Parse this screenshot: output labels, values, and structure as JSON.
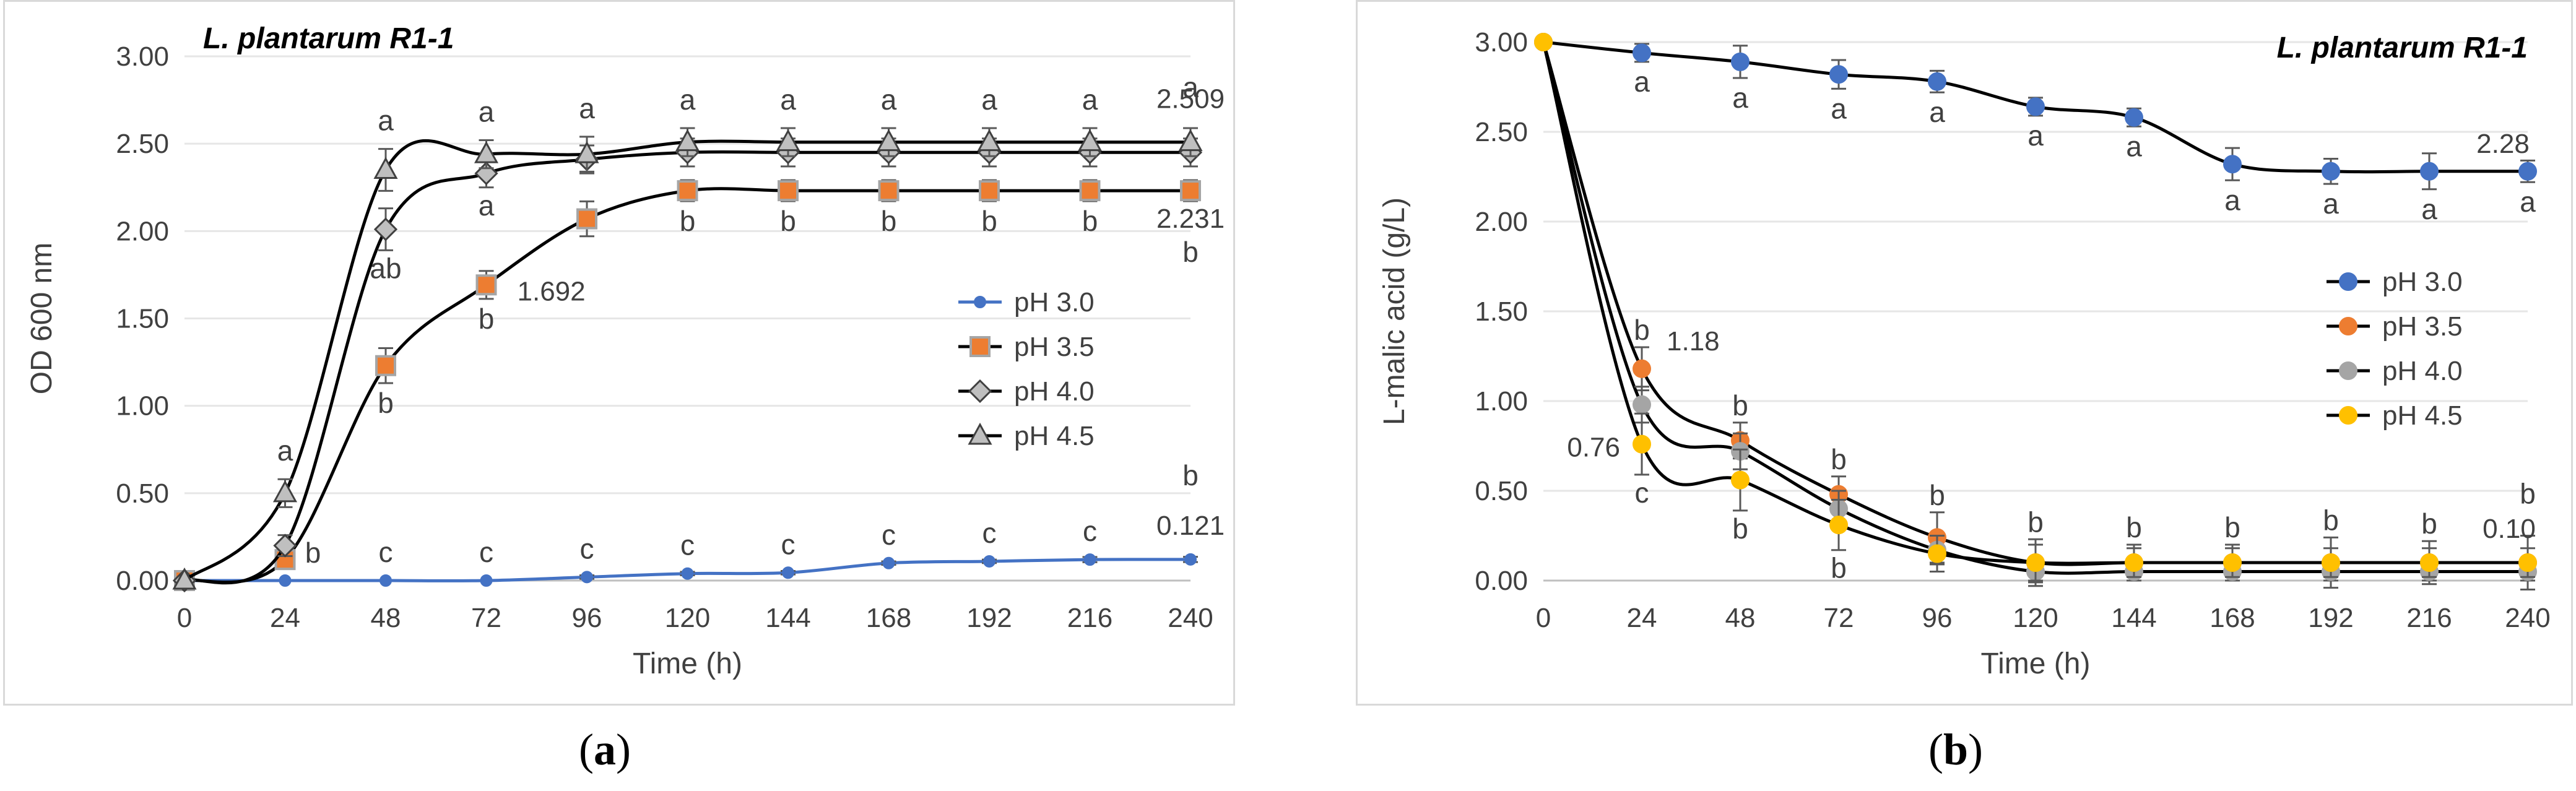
{
  "captions": {
    "a": "a",
    "b": "b"
  },
  "chart_data": [
    {
      "panel": "a",
      "type": "line",
      "title": "L. plantarum R1-1",
      "xlabel": "Time (h)",
      "ylabel": "OD 600 nm",
      "x": [
        0,
        24,
        48,
        72,
        96,
        120,
        144,
        168,
        192,
        216,
        240
      ],
      "xticks": [
        "0",
        "24",
        "48",
        "72",
        "96",
        "120",
        "144",
        "168",
        "192",
        "216",
        "240"
      ],
      "xlim": [
        0,
        240
      ],
      "ylim": [
        0,
        3
      ],
      "yticks": [
        "0.00",
        "0.50",
        "1.00",
        "1.50",
        "2.00",
        "2.50",
        "3.00"
      ],
      "legend_position": "right-middle",
      "series": [
        {
          "name": "pH 3.0",
          "marker": "circle-small",
          "color": "#4472c4",
          "line": "#4472c4",
          "values": [
            0,
            0,
            0,
            0,
            0.02,
            0.04,
            0.045,
            0.1,
            0.11,
            0.12,
            0.121
          ],
          "errors": [
            0,
            0,
            0,
            0,
            0.01,
            0.01,
            0.01,
            0.01,
            0.01,
            0.015,
            0.015
          ],
          "letters": [
            "",
            "",
            "c",
            "c",
            "c",
            "c",
            "c",
            "c",
            "c",
            "c",
            "b"
          ]
        },
        {
          "name": "pH 3.5",
          "marker": "square",
          "color": "#ed7d31",
          "line": "#000000",
          "values": [
            0,
            0.12,
            1.23,
            1.692,
            2.07,
            2.231,
            2.231,
            2.231,
            2.231,
            2.231,
            2.231
          ],
          "errors": [
            0,
            0.05,
            0.1,
            0.08,
            0.1,
            0.06,
            0.06,
            0.06,
            0.06,
            0.06,
            0.06
          ],
          "letters": [
            "",
            "b",
            "b",
            "b",
            "",
            "b",
            "b",
            "b",
            "b",
            "b",
            "b"
          ]
        },
        {
          "name": "pH 4.0",
          "marker": "diamond",
          "color": "#bfbfbf",
          "line": "#000000",
          "values": [
            0,
            0.2,
            2.01,
            2.33,
            2.41,
            2.45,
            2.45,
            2.45,
            2.45,
            2.45,
            2.45
          ],
          "errors": [
            0,
            0.06,
            0.12,
            0.08,
            0.08,
            0.08,
            0.08,
            0.08,
            0.08,
            0.08,
            0.08
          ],
          "letters": [
            "",
            "",
            "ab",
            "a",
            "",
            "",
            "",
            "",
            "",
            "",
            ""
          ]
        },
        {
          "name": "pH 4.5",
          "marker": "triangle",
          "color": "#bfbfbf",
          "line": "#000000",
          "values": [
            0,
            0.5,
            2.35,
            2.44,
            2.44,
            2.509,
            2.509,
            2.509,
            2.509,
            2.509,
            2.509
          ],
          "errors": [
            0,
            0.08,
            0.12,
            0.08,
            0.1,
            0.08,
            0.08,
            0.08,
            0.08,
            0.08,
            0.08
          ],
          "letters": [
            "",
            "a",
            "a",
            "a",
            "a",
            "a",
            "a",
            "a",
            "a",
            "a",
            "a"
          ]
        }
      ],
      "annotations": [
        "2.509",
        "2.231",
        "1.692",
        "0.121"
      ]
    },
    {
      "panel": "b",
      "type": "line",
      "title": "L. plantarum R1-1",
      "xlabel": "Time (h)",
      "ylabel": "L-malic acid (g/L)",
      "x": [
        0,
        24,
        48,
        72,
        96,
        120,
        144,
        168,
        192,
        216,
        240
      ],
      "xticks": [
        "0",
        "24",
        "48",
        "72",
        "96",
        "120",
        "144",
        "168",
        "192",
        "216",
        "240"
      ],
      "xlim": [
        0,
        240
      ],
      "ylim": [
        0,
        3
      ],
      "yticks": [
        "0.00",
        "0.50",
        "1.00",
        "1.50",
        "2.00",
        "2.50",
        "3.00"
      ],
      "legend_position": "right-middle",
      "series": [
        {
          "name": "pH 3.0",
          "marker": "circle",
          "color": "#4472c4",
          "line": "#000000",
          "values": [
            3.0,
            2.94,
            2.89,
            2.82,
            2.78,
            2.64,
            2.58,
            2.32,
            2.28,
            2.28,
            2.28
          ],
          "errors": [
            0,
            0.05,
            0.09,
            0.08,
            0.06,
            0.05,
            0.05,
            0.09,
            0.07,
            0.1,
            0.06
          ],
          "letters": [
            "",
            "a",
            "a",
            "a",
            "a",
            "a",
            "a",
            "a",
            "a",
            "a",
            "a"
          ]
        },
        {
          "name": "pH 3.5",
          "marker": "circle",
          "color": "#ed7d31",
          "line": "#000000",
          "values": [
            3.0,
            1.18,
            0.78,
            0.48,
            0.24,
            0.1,
            0.1,
            0.1,
            0.1,
            0.1,
            0.1
          ],
          "errors": [
            0,
            0.12,
            0.1,
            0.1,
            0.14,
            0.13,
            0.1,
            0.1,
            0.14,
            0.12,
            0.15
          ],
          "letters": [
            "",
            "b",
            "b",
            "b",
            "b",
            "b",
            "b",
            "b",
            "b",
            "b",
            "b"
          ]
        },
        {
          "name": "pH 4.0",
          "marker": "circle",
          "color": "#a5a5a5",
          "line": "#000000",
          "values": [
            3.0,
            0.98,
            0.72,
            0.4,
            0.17,
            0.05,
            0.05,
            0.05,
            0.05,
            0.05,
            0.05
          ],
          "errors": [
            0,
            0.1,
            0.1,
            0.1,
            0.08,
            0.06,
            0.05,
            0.05,
            0.05,
            0.05,
            0.05
          ],
          "letters": [
            "",
            "",
            "",
            "",
            "",
            "",
            "",
            "",
            "",
            "",
            ""
          ]
        },
        {
          "name": "pH 4.5",
          "marker": "circle",
          "color": "#ffc000",
          "line": "#000000",
          "values": [
            3.0,
            0.76,
            0.56,
            0.31,
            0.15,
            0.1,
            0.1,
            0.1,
            0.1,
            0.1,
            0.1
          ],
          "errors": [
            0,
            0.17,
            0.17,
            0.14,
            0.1,
            0.1,
            0.08,
            0.08,
            0.08,
            0.08,
            0.08
          ],
          "letters": [
            "",
            "c",
            "b",
            "b",
            "",
            "",
            "",
            "",
            "",
            "",
            ""
          ]
        }
      ],
      "annotations": [
        "2.28",
        "1.18",
        "0.76",
        "0.10"
      ]
    }
  ]
}
